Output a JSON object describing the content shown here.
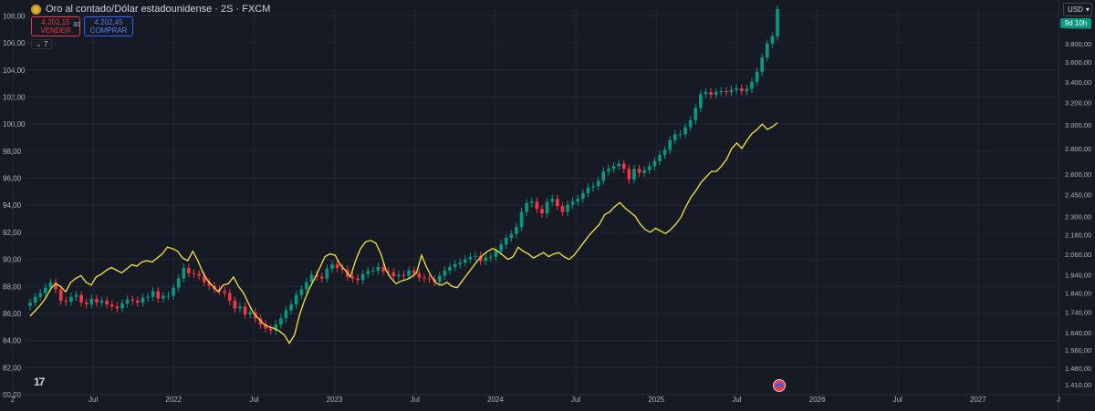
{
  "header": {
    "title": "Oro al contado/Dólar estadounidense · 2S · FXCM",
    "sell_price": "4.202,15",
    "sell_label": "VENDER",
    "spread": "30",
    "buy_price": "4.202,45",
    "buy_label": "COMPRAR",
    "indicator_count": "7"
  },
  "toolbar": {
    "currency": "USD",
    "timer": "9d 10h"
  },
  "colors": {
    "background": "#161a25",
    "up": "#089981",
    "down": "#f23645",
    "line": "#f7e63e",
    "grid": "#232633",
    "text": "#b2b5be"
  },
  "icons": {
    "logo": "tradingview-logo-icon",
    "event": "us-flag-icon",
    "currency_dropdown": "chevron-down-icon"
  },
  "chart_data": {
    "type": "candlestick-with-line",
    "interval": "2S",
    "left_axis": {
      "ticks": [
        "108,00",
        "106,00",
        "104,00",
        "102,00",
        "100,00",
        "98,00",
        "96,00",
        "94,00",
        "92,00",
        "90,00",
        "88,00",
        "86,00",
        "84,00",
        "82,00",
        "80,00"
      ],
      "range": [
        80,
        108.5
      ]
    },
    "right_axis": {
      "ticks": [
        "4.000,00",
        "3.800,00",
        "3.600,00",
        "3.400,00",
        "3.200,00",
        "3.000,00",
        "2.800,00",
        "2.600,00",
        "2.450,00",
        "2.300,00",
        "2.180,00",
        "2.060,00",
        "1.940,00",
        "1.840,00",
        "1.740,00",
        "1.640,00",
        "1.560,00",
        "1.480,00",
        "1.410,00"
      ],
      "scale": "log",
      "range": [
        1370,
        4200
      ]
    },
    "x_axis": {
      "labels": [
        "2",
        "Jul",
        "2022",
        "Jul",
        "2023",
        "Jul",
        "2024",
        "Jul",
        "2025",
        "Jul",
        "2026",
        "Jul",
        "2027",
        "J"
      ]
    },
    "candle_series": {
      "name": "Oro al contado/Dólar estadounidense",
      "axis": "right",
      "closes": [
        1790,
        1820,
        1840,
        1870,
        1898,
        1860,
        1800,
        1795,
        1820,
        1830,
        1790,
        1780,
        1810,
        1790,
        1800,
        1780,
        1770,
        1760,
        1785,
        1805,
        1800,
        1790,
        1815,
        1820,
        1850,
        1812,
        1825,
        1826,
        1870,
        1920,
        1980,
        1950,
        1945,
        1935,
        1900,
        1880,
        1860,
        1850,
        1840,
        1800,
        1760,
        1770,
        1730,
        1740,
        1710,
        1680,
        1660,
        1650,
        1680,
        1710,
        1750,
        1780,
        1830,
        1860,
        1900,
        1940,
        1930,
        1920,
        1975,
        2000,
        1980,
        1970,
        1930,
        1920,
        1910,
        1945,
        1963,
        1965,
        1985,
        1960,
        1955,
        1932,
        1940,
        1935,
        1965,
        1950,
        1925,
        1920,
        1915,
        1900,
        1935,
        1965,
        1985,
        2000,
        2010,
        2030,
        2045,
        2050,
        2020,
        2040,
        2045,
        2080,
        2120,
        2160,
        2185,
        2230,
        2330,
        2390,
        2400,
        2350,
        2320,
        2400,
        2420,
        2370,
        2330,
        2380,
        2400,
        2420,
        2460,
        2500,
        2510,
        2550,
        2620,
        2640,
        2660,
        2680,
        2640,
        2560,
        2640,
        2610,
        2630,
        2660,
        2700,
        2750,
        2790,
        2870,
        2920,
        2920,
        2980,
        3040,
        3150,
        3280,
        3300,
        3275,
        3300,
        3310,
        3300,
        3320,
        3335,
        3310,
        3330,
        3400,
        3500,
        3650,
        3800,
        3880,
        4200
      ]
    },
    "line_series": {
      "name": "",
      "axis": "left",
      "values": [
        85.8,
        86.2,
        86.6,
        87.1,
        87.8,
        88.2,
        88.0,
        87.6,
        88.3,
        88.6,
        88.8,
        88.3,
        88.1,
        88.7,
        88.9,
        89.2,
        89.4,
        89.2,
        89.0,
        89.3,
        89.6,
        89.5,
        89.8,
        89.9,
        89.8,
        90.1,
        90.4,
        90.9,
        90.8,
        90.6,
        90.1,
        89.9,
        90.6,
        89.9,
        89.0,
        88.4,
        88.0,
        87.6,
        88.1,
        88.2,
        88.7,
        88.0,
        87.5,
        86.7,
        86.0,
        85.6,
        85.2,
        85.0,
        84.9,
        84.7,
        84.4,
        83.8,
        84.4,
        85.9,
        87.0,
        87.9,
        88.6,
        89.4,
        90.2,
        90.4,
        90.3,
        89.6,
        89.2,
        88.7,
        89.9,
        90.8,
        91.3,
        91.4,
        91.2,
        90.4,
        89.2,
        88.6,
        88.2,
        88.4,
        88.5,
        88.7,
        89.0,
        90.3,
        89.4,
        88.7,
        88.2,
        88.1,
        88.3,
        88.0,
        87.9,
        88.4,
        88.9,
        89.4,
        89.9,
        90.3,
        90.6,
        90.8,
        90.6,
        90.3,
        90.0,
        90.2,
        90.9,
        90.6,
        90.4,
        90.1,
        90.3,
        90.5,
        90.2,
        90.4,
        90.5,
        90.2,
        90.0,
        90.3,
        90.8,
        91.3,
        91.8,
        92.2,
        92.6,
        93.3,
        93.5,
        93.9,
        94.2,
        93.8,
        93.5,
        93.2,
        92.6,
        92.2,
        92.0,
        92.3,
        92.1,
        91.9,
        92.2,
        92.6,
        93.1,
        93.9,
        94.6,
        95.1,
        95.7,
        96.1,
        96.5,
        96.5,
        96.9,
        97.4,
        98.2,
        98.6,
        98.2,
        98.8,
        99.3,
        99.6,
        100.0,
        99.6,
        99.8,
        100.1
      ]
    }
  }
}
